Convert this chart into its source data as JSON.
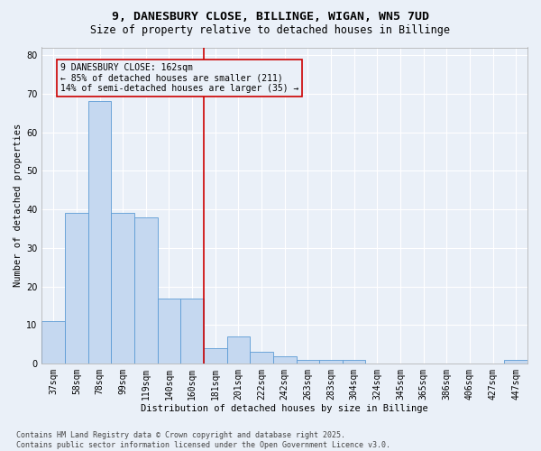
{
  "title_line1": "9, DANESBURY CLOSE, BILLINGE, WIGAN, WN5 7UD",
  "title_line2": "Size of property relative to detached houses in Billinge",
  "xlabel": "Distribution of detached houses by size in Billinge",
  "ylabel": "Number of detached properties",
  "categories": [
    "37sqm",
    "58sqm",
    "78sqm",
    "99sqm",
    "119sqm",
    "140sqm",
    "160sqm",
    "181sqm",
    "201sqm",
    "222sqm",
    "242sqm",
    "263sqm",
    "283sqm",
    "304sqm",
    "324sqm",
    "345sqm",
    "365sqm",
    "386sqm",
    "406sqm",
    "427sqm",
    "447sqm"
  ],
  "values": [
    11,
    39,
    68,
    39,
    38,
    17,
    17,
    4,
    7,
    3,
    2,
    1,
    1,
    1,
    0,
    0,
    0,
    0,
    0,
    0,
    1
  ],
  "bar_color": "#c5d8f0",
  "bar_edgecolor": "#5b9bd5",
  "ylim": [
    0,
    82
  ],
  "yticks": [
    0,
    10,
    20,
    30,
    40,
    50,
    60,
    70,
    80
  ],
  "property_line_x": 6.5,
  "property_line_color": "#cc0000",
  "annotation_line1": "9 DANESBURY CLOSE: 162sqm",
  "annotation_line2": "← 85% of detached houses are smaller (211)",
  "annotation_line3": "14% of semi-detached houses are larger (35) →",
  "annotation_box_color": "#cc0000",
  "footer_line1": "Contains HM Land Registry data © Crown copyright and database right 2025.",
  "footer_line2": "Contains public sector information licensed under the Open Government Licence v3.0.",
  "bg_color": "#eaf0f8",
  "grid_color": "#ffffff",
  "title_fontsize": 9.5,
  "subtitle_fontsize": 8.5,
  "axis_label_fontsize": 7.5,
  "tick_fontsize": 7,
  "annotation_fontsize": 7,
  "footer_fontsize": 6
}
